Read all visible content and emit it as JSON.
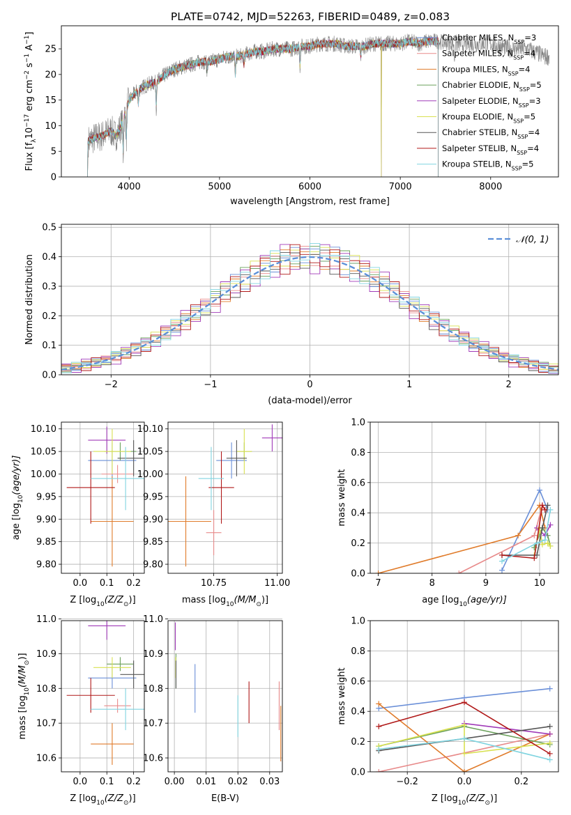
{
  "figure_title": "PLATE=0742, MJD=52263, FIBERID=0489, z=0.083",
  "colors": {
    "chabrier_miles": "#6a8fd8",
    "salpeter_miles": "#e88a8a",
    "kroupa_miles": "#e07b2a",
    "chabrier_elodie": "#6aa05a",
    "salpeter_elodie": "#a03ab8",
    "kroupa_elodie": "#d8e050",
    "chabrier_stelib": "#555555",
    "salpeter_stelib": "#b01818",
    "kroupa_stelib": "#80d4e0",
    "data": "#808080",
    "grid": "#b0b0b0"
  },
  "chart_data": [
    {
      "type": "line",
      "id": "spectrum",
      "xlabel": "wavelength [Angstrom, rest frame]",
      "ylabel_parts": [
        "Flux [f",
        "λ",
        "10",
        "−17",
        " erg cm",
        "−2",
        " s",
        "−1",
        " A",
        "−1",
        "]"
      ],
      "xlim": [
        3250,
        8750
      ],
      "ylim": [
        0,
        29.5
      ],
      "xticks": [
        4000,
        5000,
        6000,
        7000,
        8000
      ],
      "yticks": [
        0,
        5,
        10,
        15,
        20,
        25
      ],
      "grid": false,
      "legend_position": "right",
      "legend": [
        {
          "name": "Chabrier MILES",
          "nssp": "3",
          "color": "#6a8fd8"
        },
        {
          "name": "Salpeter MILES",
          "nssp": "4",
          "color": "#e88a8a"
        },
        {
          "name": "Kroupa MILES",
          "nssp": "4",
          "color": "#e07b2a"
        },
        {
          "name": "Chabrier ELODIE",
          "nssp": "5",
          "color": "#6aa05a"
        },
        {
          "name": "Salpeter ELODIE",
          "nssp": "3",
          "color": "#a03ab8"
        },
        {
          "name": "Kroupa ELODIE",
          "nssp": "5",
          "color": "#d8e050"
        },
        {
          "name": "Chabrier STELIB",
          "nssp": "4",
          "color": "#555555"
        },
        {
          "name": "Salpeter STELIB",
          "nssp": "4",
          "color": "#b01818"
        },
        {
          "name": "Kroupa STELIB",
          "nssp": "5",
          "color": "#80d4e0"
        }
      ],
      "continuum": [
        [
          3550,
          7
        ],
        [
          3600,
          7.5
        ],
        [
          3700,
          8
        ],
        [
          3800,
          9
        ],
        [
          3850,
          8
        ],
        [
          3900,
          9.5
        ],
        [
          3950,
          12
        ],
        [
          4000,
          15
        ],
        [
          4050,
          16
        ],
        [
          4100,
          17
        ],
        [
          4200,
          18
        ],
        [
          4300,
          18.5
        ],
        [
          4400,
          20
        ],
        [
          4500,
          21
        ],
        [
          4600,
          21.5
        ],
        [
          4700,
          22
        ],
        [
          4800,
          22.5
        ],
        [
          4900,
          22.5
        ],
        [
          5000,
          23
        ],
        [
          5100,
          23.5
        ],
        [
          5200,
          23.5
        ],
        [
          5300,
          24
        ],
        [
          5400,
          24.5
        ],
        [
          5500,
          24.5
        ],
        [
          5600,
          25
        ],
        [
          5700,
          25
        ],
        [
          5800,
          25
        ],
        [
          5900,
          25.5
        ],
        [
          6000,
          25.5
        ],
        [
          6100,
          26
        ],
        [
          6200,
          26
        ],
        [
          6300,
          26
        ],
        [
          6400,
          25.5
        ],
        [
          6500,
          25.5
        ],
        [
          6600,
          25.5
        ],
        [
          6700,
          26
        ],
        [
          6800,
          26
        ],
        [
          6900,
          26
        ],
        [
          7000,
          26
        ],
        [
          7100,
          26.5
        ],
        [
          7200,
          26
        ],
        [
          7300,
          26.5
        ],
        [
          7400,
          26.5
        ],
        [
          7600,
          26
        ],
        [
          7800,
          26
        ],
        [
          8000,
          26
        ],
        [
          8200,
          25
        ],
        [
          8400,
          25
        ],
        [
          8600,
          23.5
        ]
      ],
      "dips": [
        {
          "wavelength": 3934,
          "depth": 7
        },
        {
          "wavelength": 3969,
          "depth": 6
        },
        {
          "wavelength": 4101,
          "depth": 3
        },
        {
          "wavelength": 4300,
          "depth": 5
        },
        {
          "wavelength": 4861,
          "depth": 2
        },
        {
          "wavelength": 5175,
          "depth": 4
        },
        {
          "wavelength": 5270,
          "depth": 2
        },
        {
          "wavelength": 5890,
          "depth": 4
        },
        {
          "wavelength": 6563,
          "depth": 2
        },
        {
          "wavelength": 7600,
          "depth": 3
        }
      ],
      "model_edges": {
        "blue_drop": 3540,
        "red_drop": 7420,
        "elodie_gap": 6790
      }
    },
    {
      "type": "histogram",
      "id": "residuals",
      "xlabel": "(data-model)/error",
      "ylabel": "Normed distribution",
      "xlim": [
        -2.5,
        2.5
      ],
      "ylim": [
        0,
        0.51
      ],
      "xticks": [
        -2,
        -1,
        0,
        1,
        2
      ],
      "yticks": [
        0.0,
        0.1,
        0.2,
        0.3,
        0.4,
        0.5
      ],
      "grid": true,
      "legend_position": "top-right",
      "legend_label": "𝒩(0, 1)",
      "bin_width": 0.1,
      "offsets": [
        [
          0.02,
          -0.03,
          0.01,
          0.04,
          -0.02,
          0.03,
          -0.01,
          0.05,
          -0.04,
          0.02
        ],
        [
          -0.02,
          0.03,
          -0.03,
          0.01,
          0.04,
          -0.03,
          0.02,
          -0.02,
          0.01,
          0.03
        ],
        [
          0.03,
          -0.01,
          0.04,
          -0.03,
          0.02,
          0.01,
          -0.04,
          0.03,
          -0.02,
          -0.01
        ],
        [
          -0.03,
          0.02,
          0.0,
          -0.02,
          0.03,
          0.04,
          -0.01,
          -0.03,
          0.05,
          0.02
        ],
        [
          0.05,
          -0.05,
          0.06,
          -0.04,
          0.03,
          -0.06,
          0.05,
          -0.03,
          0.04,
          -0.05
        ],
        [
          0.01,
          0.04,
          -0.02,
          0.03,
          -0.03,
          0.02,
          0.04,
          0.01,
          -0.02,
          0.05
        ],
        [
          -0.01,
          -0.02,
          0.03,
          0.02,
          -0.04,
          0.01,
          0.03,
          -0.05,
          0.02,
          -0.02
        ],
        [
          0.04,
          0.01,
          -0.05,
          0.05,
          0.01,
          -0.02,
          -0.03,
          0.04,
          -0.05,
          0.03
        ],
        [
          -0.04,
          0.05,
          0.02,
          -0.01,
          -0.01,
          0.05,
          0.01,
          0.02,
          0.03,
          -0.04
        ]
      ]
    },
    {
      "type": "errorbar",
      "id": "age_vs_Z",
      "xlabel_parts": [
        "Z [log",
        "10",
        "(Z/Z",
        "⊙",
        ")]"
      ],
      "ylabel_parts": [
        "age  [log",
        "10",
        "(age/yr)]"
      ],
      "xlim": [
        -0.07,
        0.24
      ],
      "ylim": [
        9.78,
        10.115
      ],
      "xticks": [
        0.0,
        0.1,
        0.2
      ],
      "yticks": [
        9.8,
        9.85,
        9.9,
        9.95,
        10.0,
        10.05,
        10.1
      ],
      "grid": true,
      "points": [
        {
          "x": 0.12,
          "xerr": 0.09,
          "y": 10.03,
          "yerr": 0.04,
          "color": "#6a8fd8"
        },
        {
          "x": 0.14,
          "xerr": 0.06,
          "y": 10.0,
          "yerr": 0.02,
          "color": "#e88a8a"
        },
        {
          "x": 0.12,
          "xerr": 0.08,
          "y": 9.895,
          "yerr": 0.1,
          "color": "#e07b2a"
        },
        {
          "x": 0.15,
          "xerr": 0.06,
          "y": 10.05,
          "yerr": 0.02,
          "color": "#6aa05a"
        },
        {
          "x": 0.1,
          "xerr": 0.07,
          "y": 10.075,
          "yerr": 0.03,
          "color": "#a03ab8"
        },
        {
          "x": 0.12,
          "xerr": 0.07,
          "y": 10.05,
          "yerr": 0.05,
          "color": "#d8e050"
        },
        {
          "x": 0.2,
          "xerr": 0.06,
          "y": 10.035,
          "yerr": 0.04,
          "color": "#555555"
        },
        {
          "x": 0.04,
          "xerr": 0.09,
          "y": 9.97,
          "yerr": 0.08,
          "color": "#b01818"
        },
        {
          "x": 0.17,
          "xerr": 0.13,
          "y": 9.99,
          "yerr": 0.07,
          "color": "#80d4e0"
        }
      ]
    },
    {
      "type": "errorbar",
      "id": "age_vs_mass",
      "xlabel_parts": [
        "mass [log",
        "10",
        "(M/M",
        "⊙",
        ")]"
      ],
      "xlim": [
        10.57,
        11.02
      ],
      "ylim": [
        9.78,
        10.115
      ],
      "xticks": [
        10.75,
        11.0
      ],
      "yticks": [
        9.8,
        9.85,
        9.9,
        9.95,
        10.0,
        10.05,
        10.1
      ],
      "grid": true,
      "points": [
        {
          "x": 10.82,
          "xerr": 0.06,
          "y": 10.03,
          "yerr": 0.04,
          "color": "#6a8fd8"
        },
        {
          "x": 10.75,
          "xerr": 0.03,
          "y": 9.87,
          "yerr": 0.05,
          "color": "#e88a8a"
        },
        {
          "x": 10.64,
          "xerr": 0.1,
          "y": 9.895,
          "yerr": 0.1,
          "color": "#e07b2a"
        },
        {
          "x": 10.87,
          "xerr": 0.03,
          "y": 10.05,
          "yerr": 0.02,
          "color": "#6aa05a"
        },
        {
          "x": 10.98,
          "xerr": 0.04,
          "y": 10.08,
          "yerr": 0.03,
          "color": "#a03ab8"
        },
        {
          "x": 10.87,
          "xerr": 0.03,
          "y": 10.05,
          "yerr": 0.05,
          "color": "#d8e050"
        },
        {
          "x": 10.84,
          "xerr": 0.04,
          "y": 10.035,
          "yerr": 0.04,
          "color": "#555555"
        },
        {
          "x": 10.78,
          "xerr": 0.05,
          "y": 9.97,
          "yerr": 0.08,
          "color": "#b01818"
        },
        {
          "x": 10.74,
          "xerr": 0.05,
          "y": 9.99,
          "yerr": 0.07,
          "color": "#80d4e0"
        }
      ]
    },
    {
      "type": "line",
      "id": "weight_vs_age",
      "xlabel_parts": [
        "age  [log",
        "10",
        "(age/yr)]"
      ],
      "ylabel": "mass weight",
      "xlim": [
        6.85,
        10.35
      ],
      "ylim": [
        0,
        1.0
      ],
      "xticks": [
        7,
        8,
        9,
        10
      ],
      "yticks": [
        0.0,
        0.2,
        0.4,
        0.6,
        0.8,
        1.0
      ],
      "grid": true,
      "series": [
        {
          "color": "#6a8fd8",
          "x": [
            9.3,
            10.0,
            10.15
          ],
          "y": [
            0.02,
            0.55,
            0.42
          ]
        },
        {
          "color": "#e88a8a",
          "x": [
            8.5,
            9.9,
            10.05
          ],
          "y": [
            0.0,
            0.25,
            0.45
          ]
        },
        {
          "color": "#e07b2a",
          "x": [
            7.0,
            9.6,
            10.0,
            10.1
          ],
          "y": [
            0.0,
            0.25,
            0.45,
            0.3
          ]
        },
        {
          "color": "#6aa05a",
          "x": [
            9.9,
            10.05,
            10.15,
            10.2
          ],
          "y": [
            0.17,
            0.3,
            0.25,
            0.18
          ]
        },
        {
          "color": "#a03ab8",
          "x": [
            9.95,
            10.1,
            10.2
          ],
          "y": [
            0.3,
            0.25,
            0.32
          ]
        },
        {
          "color": "#d8e050",
          "x": [
            9.9,
            10.0,
            10.05,
            10.15,
            10.2
          ],
          "y": [
            0.12,
            0.3,
            0.19,
            0.2,
            0.18
          ]
        },
        {
          "color": "#555555",
          "x": [
            9.3,
            9.95,
            10.05,
            10.15
          ],
          "y": [
            0.12,
            0.12,
            0.3,
            0.45
          ]
        },
        {
          "color": "#b01818",
          "x": [
            9.3,
            9.9,
            10.05,
            10.1
          ],
          "y": [
            0.12,
            0.1,
            0.45,
            0.42
          ]
        },
        {
          "color": "#80d4e0",
          "x": [
            9.3,
            9.95,
            10.1,
            10.2
          ],
          "y": [
            0.08,
            0.2,
            0.22,
            0.42
          ]
        }
      ]
    },
    {
      "type": "errorbar",
      "id": "mass_vs_Z",
      "xlabel_parts": [
        "Z [log",
        "10",
        "(Z/Z",
        "⊙",
        ")]"
      ],
      "ylabel_parts": [
        "mass [log",
        "10",
        "(M/M",
        "⊙",
        ")]"
      ],
      "xlim": [
        -0.07,
        0.24
      ],
      "ylim": [
        10.56,
        10.995
      ],
      "xticks": [
        0.0,
        0.1,
        0.2
      ],
      "yticks": [
        10.6,
        10.7,
        10.8,
        10.9,
        11.0
      ],
      "grid": true,
      "points": [
        {
          "x": 0.12,
          "xerr": 0.09,
          "y": 10.83,
          "yerr": 0.03,
          "color": "#6a8fd8"
        },
        {
          "x": 0.14,
          "xerr": 0.05,
          "y": 10.75,
          "yerr": 0.02,
          "color": "#e88a8a"
        },
        {
          "x": 0.12,
          "xerr": 0.08,
          "y": 10.64,
          "yerr": 0.06,
          "color": "#e07b2a"
        },
        {
          "x": 0.15,
          "xerr": 0.05,
          "y": 10.87,
          "yerr": 0.02,
          "color": "#6aa05a"
        },
        {
          "x": 0.1,
          "xerr": 0.07,
          "y": 10.98,
          "yerr": 0.04,
          "color": "#a03ab8"
        },
        {
          "x": 0.12,
          "xerr": 0.07,
          "y": 10.86,
          "yerr": 0.03,
          "color": "#d8e050"
        },
        {
          "x": 0.2,
          "xerr": 0.05,
          "y": 10.84,
          "yerr": 0.04,
          "color": "#555555"
        },
        {
          "x": 0.04,
          "xerr": 0.09,
          "y": 10.78,
          "yerr": 0.05,
          "color": "#b01818"
        },
        {
          "x": 0.17,
          "xerr": 0.13,
          "y": 10.74,
          "yerr": 0.06,
          "color": "#80d4e0"
        }
      ]
    },
    {
      "type": "errorbar",
      "id": "mass_vs_ebv",
      "xlabel": "E(B-V)",
      "xlim": [
        -0.002,
        0.034
      ],
      "ylim": [
        10.56,
        10.995
      ],
      "xticks": [
        0.0,
        0.01,
        0.02,
        0.03
      ],
      "yticks": [
        10.6,
        10.7,
        10.8,
        10.9,
        11.0
      ],
      "grid": true,
      "points": [
        {
          "x": 0.0065,
          "xerr": 0,
          "y": 10.8,
          "yerr": 0.07,
          "color": "#6a8fd8"
        },
        {
          "x": 0.033,
          "xerr": 0,
          "y": 10.75,
          "yerr": 0.07,
          "color": "#e88a8a"
        },
        {
          "x": 0.0335,
          "xerr": 0,
          "y": 10.67,
          "yerr": 0.08,
          "color": "#e07b2a"
        },
        {
          "x": 0.0005,
          "xerr": 0,
          "y": 10.85,
          "yerr": 0.05,
          "color": "#6aa05a"
        },
        {
          "x": 0.0003,
          "xerr": 0,
          "y": 10.95,
          "yerr": 0.04,
          "color": "#a03ab8"
        },
        {
          "x": 0.0004,
          "xerr": 0,
          "y": 10.86,
          "yerr": 0.03,
          "color": "#d8e050"
        },
        {
          "x": 0.0005,
          "xerr": 0,
          "y": 10.84,
          "yerr": 0.04,
          "color": "#555555"
        },
        {
          "x": 0.0235,
          "xerr": 0,
          "y": 10.76,
          "yerr": 0.06,
          "color": "#b01818"
        },
        {
          "x": 0.02,
          "xerr": 0,
          "y": 10.72,
          "yerr": 0.06,
          "color": "#80d4e0"
        }
      ]
    },
    {
      "type": "line",
      "id": "weight_vs_Z",
      "xlabel_parts": [
        "Z [log",
        "10",
        "(Z/Z",
        "⊙",
        ")]"
      ],
      "ylabel": "mass weight",
      "xlim": [
        -0.33,
        0.33
      ],
      "ylim": [
        0,
        1.0
      ],
      "xticks": [
        -0.2,
        0.0,
        0.2
      ],
      "yticks": [
        0.0,
        0.2,
        0.4,
        0.6,
        0.8,
        1.0
      ],
      "grid": true,
      "series": [
        {
          "color": "#6a8fd8",
          "x": [
            -0.3,
            0.0,
            0.3
          ],
          "y": [
            0.42,
            0.49,
            0.55
          ]
        },
        {
          "color": "#e88a8a",
          "x": [
            -0.3,
            0.3
          ],
          "y": [
            0.0,
            0.25
          ]
        },
        {
          "color": "#e07b2a",
          "x": [
            -0.3,
            0.0,
            0.3
          ],
          "y": [
            0.45,
            0.0,
            0.25
          ]
        },
        {
          "color": "#6aa05a",
          "x": [
            -0.3,
            0.0,
            0.3
          ],
          "y": [
            0.17,
            0.3,
            0.18
          ]
        },
        {
          "color": "#a03ab8",
          "x": [
            0.0,
            0.3
          ],
          "y": [
            0.32,
            0.25
          ]
        },
        {
          "color": "#d8e050",
          "x": [
            -0.3,
            0.0,
            0.0,
            0.3
          ],
          "y": [
            0.17,
            0.31,
            0.12,
            0.19
          ]
        },
        {
          "color": "#555555",
          "x": [
            -0.3,
            0.3
          ],
          "y": [
            0.14,
            0.3
          ]
        },
        {
          "color": "#b01818",
          "x": [
            -0.3,
            0.0,
            0.3
          ],
          "y": [
            0.3,
            0.46,
            0.12
          ]
        },
        {
          "color": "#80d4e0",
          "x": [
            -0.3,
            0.0,
            0.3
          ],
          "y": [
            0.15,
            0.22,
            0.08
          ]
        }
      ]
    }
  ]
}
